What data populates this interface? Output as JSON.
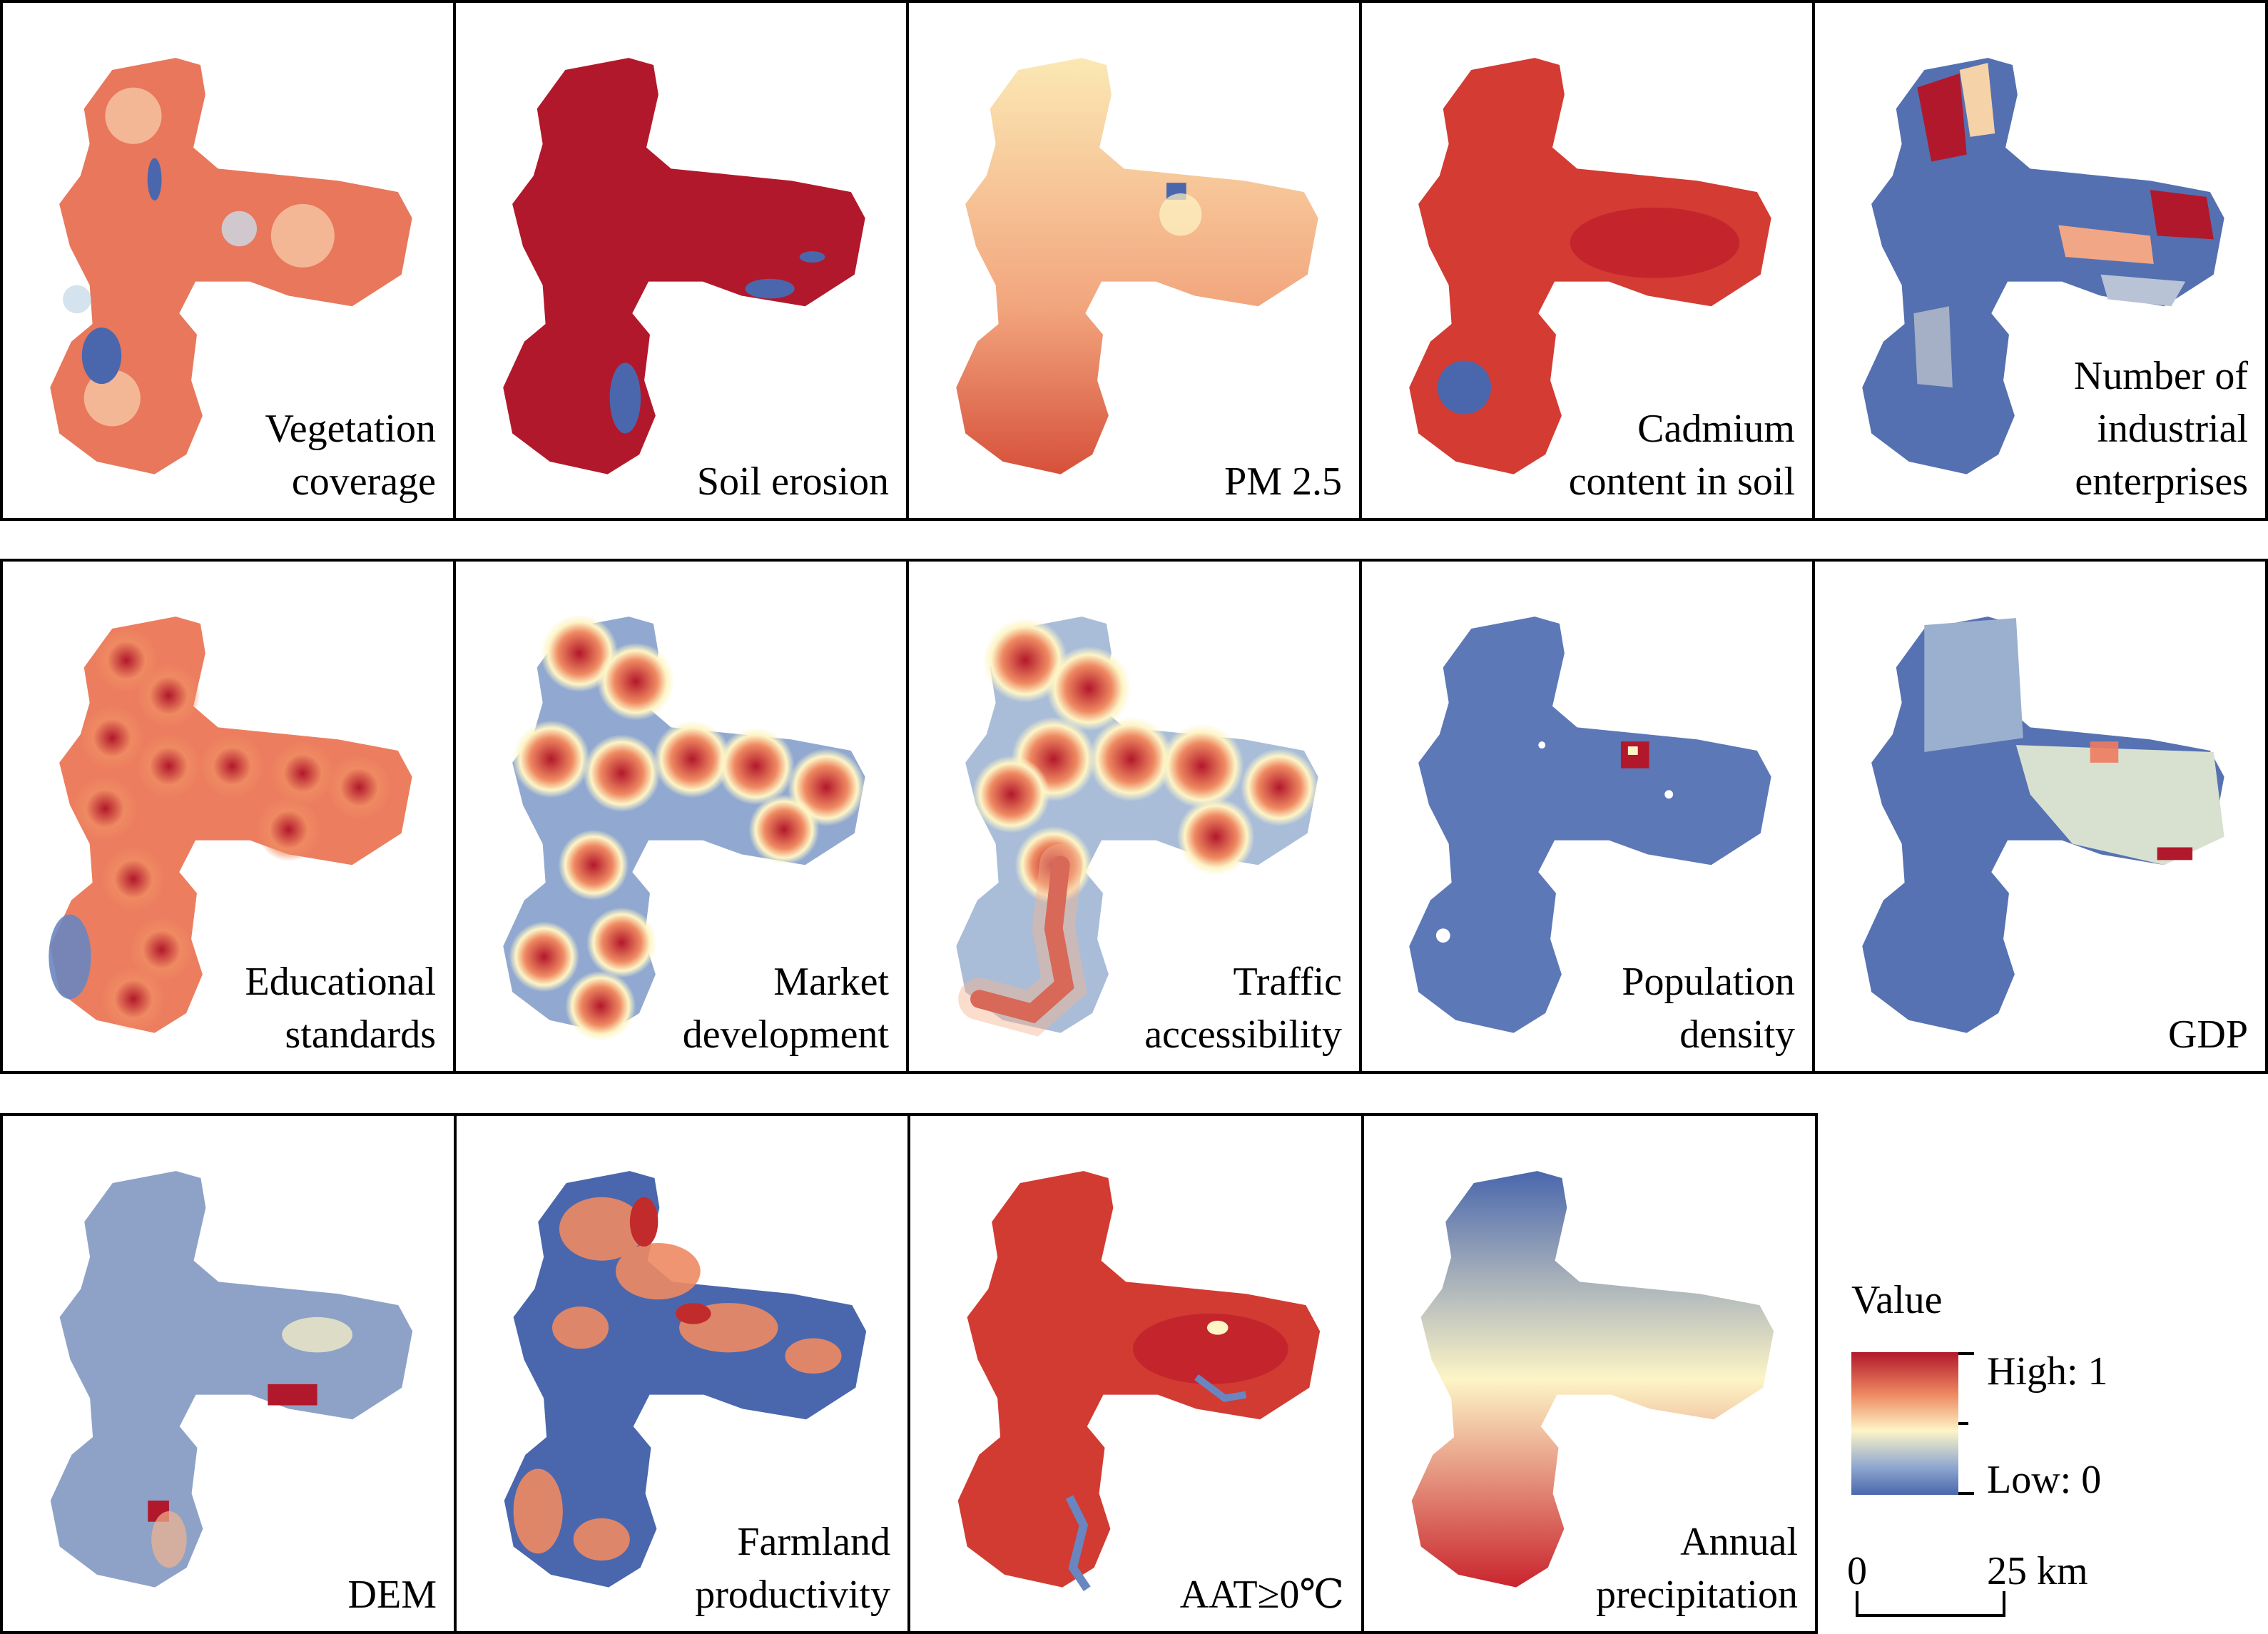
{
  "figure": {
    "panels": [
      {
        "label": "Vegetation\ncoverage",
        "scheme": "mixed-high"
      },
      {
        "label": "Soil erosion",
        "scheme": "solid-high"
      },
      {
        "label": "PM 2.5",
        "scheme": "warm-gradient"
      },
      {
        "label": "Cadmium\ncontent in soil",
        "scheme": "solid-high"
      },
      {
        "label": "Number of\nindustrial\nenterprises",
        "scheme": "mostly-low"
      },
      {
        "label": "Educational\nstandards",
        "scheme": "points-high"
      },
      {
        "label": "Market\ndevelopment",
        "scheme": "points-mixed"
      },
      {
        "label": "Traffic\naccessibility",
        "scheme": "points-mixed"
      },
      {
        "label": "Population\ndensity",
        "scheme": "mostly-low"
      },
      {
        "label": "GDP",
        "scheme": "low-mid"
      },
      {
        "label": "DEM",
        "scheme": "mostly-low"
      },
      {
        "label": "Farmland\nproductivity",
        "scheme": "mixed-blue"
      },
      {
        "label": "AAT≥0℃",
        "scheme": "solid-high"
      },
      {
        "label": "Annual\nprecipitation",
        "scheme": "north-south"
      }
    ],
    "legend": {
      "title": "Value",
      "high": "High: 1",
      "low": "Low: 0",
      "colors": {
        "high": "#b2182b",
        "mid": "#fdf5c6",
        "low": "#4a67ad"
      }
    },
    "scale_bar": {
      "start": "0",
      "end": "25 km"
    }
  }
}
